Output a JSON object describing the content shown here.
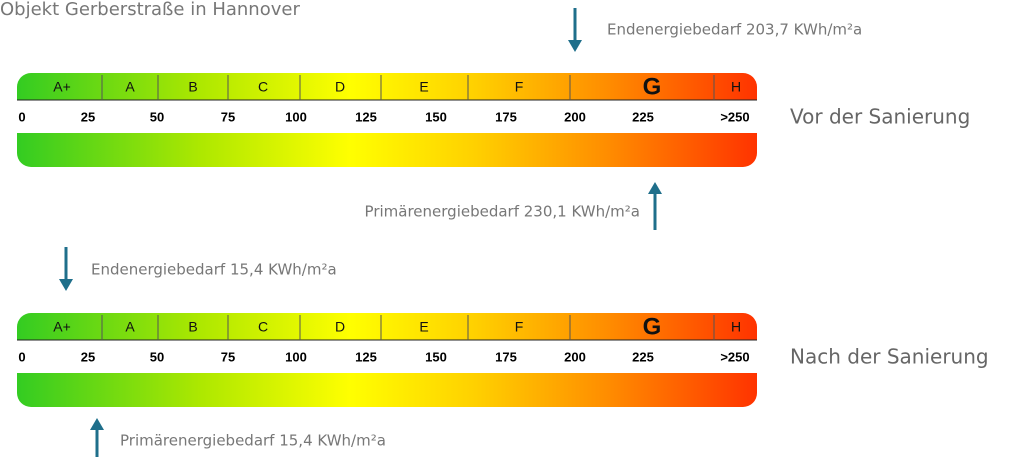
{
  "title": "Objekt Gerberstraße in Hannover",
  "scales": [
    {
      "label": "Vor der Sanierung",
      "classes": [
        "A+",
        "A",
        "B",
        "C",
        "D",
        "E",
        "F",
        "G",
        "H"
      ],
      "ticks": [
        "0",
        "25",
        "50",
        "75",
        "100",
        "125",
        "150",
        "175",
        "200",
        "225",
        ">250"
      ],
      "top_arrow": "Endenergiebedarf 203,7 KWh/m²a",
      "bottom_arrow": "Primärenergiebedarf 230,1 KWh/m²a"
    },
    {
      "label": "Nach der Sanierung",
      "classes": [
        "A+",
        "A",
        "B",
        "C",
        "D",
        "E",
        "F",
        "G",
        "H"
      ],
      "ticks": [
        "0",
        "25",
        "50",
        "75",
        "100",
        "125",
        "150",
        "175",
        "200",
        "225",
        ">250"
      ],
      "top_arrow": "Endenergiebedarf 15,4 KWh/m²a",
      "bottom_arrow": "Primärenergiebedarf 15,4 KWh/m²a"
    }
  ]
}
